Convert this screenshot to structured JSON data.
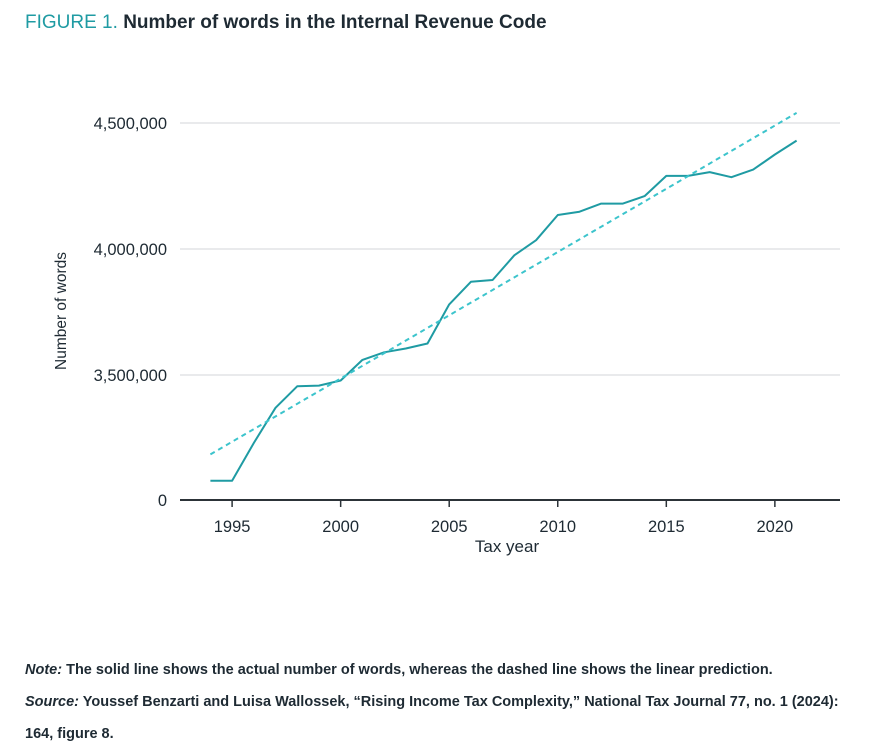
{
  "figure": {
    "label": "FIGURE 1.",
    "title": "Number of words in the Internal Revenue Code"
  },
  "chart_data": {
    "type": "line",
    "title": "Number of words in the Internal Revenue Code",
    "xlabel": "Tax year",
    "ylabel": "Number of words",
    "xlim": [
      1992.6,
      2023.0
    ],
    "x_ticks": [
      1995,
      2000,
      2005,
      2010,
      2015,
      2020
    ],
    "y_ticks": [
      3500000,
      4000000,
      4500000
    ],
    "y_tick_labels": [
      "3,500,000",
      "4,000,000",
      "4,500,000"
    ],
    "y_zero_label": "0",
    "y_axis_break": true,
    "ylim_display": [
      3000000,
      4600000
    ],
    "grid": true,
    "series": [
      {
        "name": "Actual number of words",
        "style": "solid",
        "color": "#1f9ba3",
        "x": [
          1994,
          1995,
          1996,
          1997,
          1998,
          1999,
          2000,
          2001,
          2002,
          2003,
          2004,
          2005,
          2006,
          2007,
          2008,
          2009,
          2010,
          2011,
          2012,
          2013,
          2014,
          2015,
          2016,
          2017,
          2018,
          2019,
          2020,
          2021
        ],
        "values": [
          3080000,
          3080000,
          3230000,
          3370000,
          3455000,
          3458000,
          3478000,
          3560000,
          3590000,
          3605000,
          3625000,
          3780000,
          3870000,
          3877000,
          3975000,
          4035000,
          4135000,
          4148000,
          4180000,
          4180000,
          4210000,
          4290000,
          4290000,
          4305000,
          4285000,
          4315000,
          4375000,
          4430000
        ]
      },
      {
        "name": "Linear prediction",
        "style": "dashed",
        "color": "#3cc4cc",
        "x": [
          1994,
          2021
        ],
        "values": [
          3185000,
          4540000
        ]
      }
    ]
  },
  "notes": {
    "note_label": "Note:",
    "note_text": " The solid line shows the actual number of words, whereas the dashed line shows the linear prediction.",
    "source_label": "Source:",
    "source_text": " Youssef Benzarti and Luisa Wallossek, “Rising Income Tax Complexity,” National Tax Journal 77, no. 1 (2024): 164, figure 8."
  }
}
